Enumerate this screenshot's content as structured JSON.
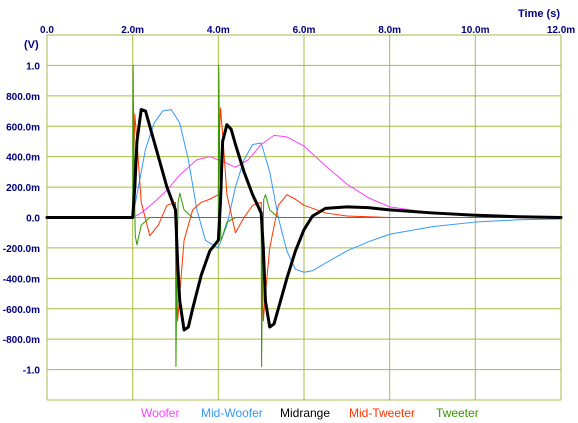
{
  "chart_data": {
    "type": "line",
    "title": "",
    "xlabel": "Time  (s)",
    "ylabel": "(V)",
    "xlim": [
      0,
      0.012
    ],
    "ylim": [
      -1.2,
      1.2
    ],
    "x_ticks": [
      {
        "value": 0.0,
        "label": "0.0"
      },
      {
        "value": 0.002,
        "label": "2.0m"
      },
      {
        "value": 0.004,
        "label": "4.0m"
      },
      {
        "value": 0.006,
        "label": "6.0m"
      },
      {
        "value": 0.008,
        "label": "8.0m"
      },
      {
        "value": 0.01,
        "label": "10.0m"
      },
      {
        "value": 0.012,
        "label": "12.0m"
      }
    ],
    "y_ticks": [
      {
        "value": 1.0,
        "label": "1.0"
      },
      {
        "value": 0.8,
        "label": "800.0m"
      },
      {
        "value": 0.6,
        "label": "600.0m"
      },
      {
        "value": 0.4,
        "label": "400.0m"
      },
      {
        "value": 0.2,
        "label": "200.0m"
      },
      {
        "value": 0.0,
        "label": "0.0"
      },
      {
        "value": -0.2,
        "label": "-200.0m"
      },
      {
        "value": -0.4,
        "label": "-400.0m"
      },
      {
        "value": -0.6,
        "label": "-600.0m"
      },
      {
        "value": -0.8,
        "label": "-800.0m"
      },
      {
        "value": -1.0,
        "label": "-1.0"
      }
    ],
    "grid": true,
    "legend_position": "bottom",
    "series": [
      {
        "name": "Woofer",
        "color": "#ff40ff",
        "x": [
          0,
          0.002,
          0.0022,
          0.0025,
          0.0028,
          0.0031,
          0.0035,
          0.0038,
          0.0041,
          0.0044,
          0.0047,
          0.005,
          0.0053,
          0.0056,
          0.006,
          0.0065,
          0.007,
          0.0075,
          0.008,
          0.009,
          0.01,
          0.011,
          0.012
        ],
        "y": [
          0,
          0,
          0.03,
          0.1,
          0.18,
          0.28,
          0.38,
          0.4,
          0.37,
          0.33,
          0.38,
          0.48,
          0.54,
          0.53,
          0.47,
          0.34,
          0.22,
          0.13,
          0.07,
          0.03,
          0.01,
          0.005,
          0
        ]
      },
      {
        "name": "Mid-Woofer",
        "color": "#3399ff",
        "x": [
          0,
          0.002,
          0.0021,
          0.0023,
          0.0025,
          0.0027,
          0.0029,
          0.0031,
          0.0033,
          0.0035,
          0.0037,
          0.004,
          0.0042,
          0.0044,
          0.0046,
          0.0048,
          0.005,
          0.0052,
          0.0054,
          0.0056,
          0.0058,
          0.006,
          0.0062,
          0.0065,
          0.007,
          0.0075,
          0.008,
          0.009,
          0.01,
          0.011,
          0.012
        ],
        "y": [
          0,
          0,
          0.15,
          0.45,
          0.62,
          0.7,
          0.71,
          0.62,
          0.38,
          0.05,
          -0.15,
          -0.2,
          -0.05,
          0.2,
          0.38,
          0.48,
          0.49,
          0.3,
          0.0,
          -0.22,
          -0.34,
          -0.36,
          -0.35,
          -0.3,
          -0.22,
          -0.16,
          -0.11,
          -0.06,
          -0.03,
          -0.015,
          -0.01
        ]
      },
      {
        "name": "Midrange",
        "color": "#000000",
        "x": [
          0,
          0.002,
          0.00205,
          0.0021,
          0.0022,
          0.0023,
          0.0024,
          0.0026,
          0.0028,
          0.003,
          0.00305,
          0.0031,
          0.0032,
          0.0033,
          0.0034,
          0.0036,
          0.0038,
          0.004,
          0.00405,
          0.0041,
          0.0042,
          0.0043,
          0.0044,
          0.0046,
          0.0048,
          0.005,
          0.00505,
          0.0051,
          0.0052,
          0.0053,
          0.0054,
          0.0056,
          0.0058,
          0.006,
          0.0062,
          0.0065,
          0.007,
          0.0075,
          0.008,
          0.009,
          0.01,
          0.011,
          0.012
        ],
        "y": [
          0,
          0,
          0.2,
          0.5,
          0.71,
          0.7,
          0.6,
          0.4,
          0.2,
          0.05,
          -0.3,
          -0.55,
          -0.74,
          -0.72,
          -0.6,
          -0.38,
          -0.22,
          -0.15,
          0.1,
          0.5,
          0.61,
          0.58,
          0.48,
          0.3,
          0.15,
          0.03,
          -0.2,
          -0.55,
          -0.72,
          -0.7,
          -0.6,
          -0.4,
          -0.22,
          -0.08,
          0.01,
          0.06,
          0.07,
          0.065,
          0.05,
          0.03,
          0.015,
          0.005,
          0
        ]
      },
      {
        "name": "Mid-Tweeter",
        "color": "#ff3300",
        "x": [
          0,
          0.002,
          0.00202,
          0.00205,
          0.0021,
          0.0022,
          0.0024,
          0.0026,
          0.0028,
          0.003,
          0.00302,
          0.00305,
          0.0031,
          0.0032,
          0.0034,
          0.0036,
          0.0038,
          0.004,
          0.00402,
          0.00405,
          0.0041,
          0.0042,
          0.0044,
          0.0046,
          0.0048,
          0.005,
          0.00502,
          0.00505,
          0.0051,
          0.0052,
          0.0054,
          0.0056,
          0.0058,
          0.006,
          0.0065,
          0.007,
          0.008,
          0.009,
          0.01,
          0.012
        ],
        "y": [
          0,
          0,
          0.3,
          0.68,
          0.5,
          0.1,
          -0.12,
          -0.05,
          0.08,
          0.1,
          -0.3,
          -0.68,
          -0.5,
          -0.15,
          0.05,
          0.1,
          0.12,
          0.15,
          0.5,
          0.72,
          0.55,
          0.15,
          -0.1,
          0.0,
          0.08,
          0.1,
          -0.3,
          -0.68,
          -0.5,
          -0.2,
          0.08,
          0.15,
          0.12,
          0.08,
          0.03,
          0.01,
          0,
          0,
          0,
          0
        ]
      },
      {
        "name": "Tweeter",
        "color": "#339900",
        "x": [
          0,
          0.002,
          0.00201,
          0.00203,
          0.00206,
          0.0021,
          0.0022,
          0.0024,
          0.0026,
          0.003,
          0.00301,
          0.00303,
          0.00306,
          0.0031,
          0.0032,
          0.0034,
          0.004,
          0.00401,
          0.00403,
          0.00406,
          0.0041,
          0.0042,
          0.0044,
          0.005,
          0.00501,
          0.00503,
          0.00506,
          0.0051,
          0.0052,
          0.0054,
          0.0056,
          0.006,
          0.007,
          0.008,
          0.012
        ],
        "y": [
          0,
          0,
          1.0,
          0.4,
          -0.12,
          -0.18,
          -0.05,
          0.0,
          0.0,
          0.0,
          -0.98,
          -0.4,
          0.1,
          0.16,
          0.05,
          0.0,
          0.0,
          1.0,
          0.4,
          -0.15,
          -0.12,
          -0.03,
          0.0,
          0.0,
          -0.98,
          -0.3,
          0.12,
          0.15,
          0.05,
          0.0,
          0.0,
          0.0,
          0.0,
          0.0,
          0.0
        ]
      }
    ]
  }
}
